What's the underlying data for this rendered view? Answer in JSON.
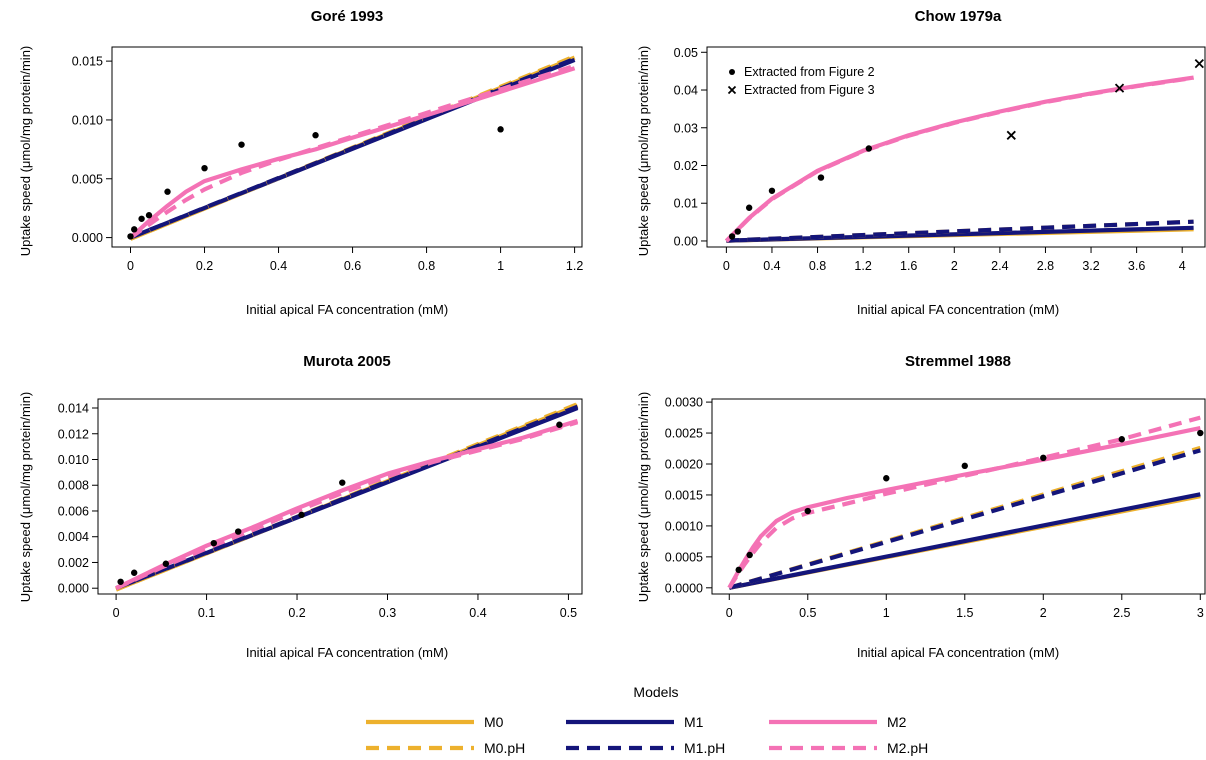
{
  "colors": {
    "M0": "#EDB12D",
    "M1": "#14157A",
    "M2": "#F472B5"
  },
  "legend": {
    "title": "Models",
    "entries": [
      {
        "key": "M0",
        "label": "M0",
        "dashed": false
      },
      {
        "key": "M1",
        "label": "M1",
        "dashed": false
      },
      {
        "key": "M2",
        "label": "M2",
        "dashed": false
      },
      {
        "key": "M0",
        "label": "M0.pH",
        "dashed": true
      },
      {
        "key": "M1",
        "label": "M1.pH",
        "dashed": true
      },
      {
        "key": "M2",
        "label": "M2.pH",
        "dashed": true
      }
    ]
  },
  "chart_data": [
    {
      "type": "line",
      "title": "Goré 1993",
      "xlabel": "Initial apical FA concentration (mM)",
      "ylabel": "Uptake speed (μmol/mg protein/min)",
      "xlim": [
        -0.05,
        1.22
      ],
      "ylim": [
        -0.0008,
        0.0162
      ],
      "xticks": [
        "0",
        "0.2",
        "0.4",
        "0.6",
        "0.8",
        "1",
        "1.2"
      ],
      "yticks": [
        "0.000",
        "0.005",
        "0.010",
        "0.015"
      ],
      "points": [
        {
          "x": [
            0,
            0.01,
            0.03,
            0.05,
            0.1,
            0.2,
            0.3,
            0.5,
            1.0
          ],
          "y": [
            0.0001,
            0.0007,
            0.0016,
            0.0019,
            0.0039,
            0.0059,
            0.0079,
            0.0087,
            0.0092
          ],
          "marker": "dot"
        }
      ],
      "series": [
        {
          "name": "M0",
          "dashed": false,
          "x": [
            0,
            1.2
          ],
          "y": [
            -0.0001,
            0.0153
          ]
        },
        {
          "name": "M1",
          "dashed": false,
          "x": [
            0,
            1.2
          ],
          "y": [
            0.0,
            0.0151
          ]
        },
        {
          "name": "M0.pH",
          "dashed": true,
          "x": [
            0,
            1.2
          ],
          "y": [
            -0.0001,
            0.0154
          ]
        },
        {
          "name": "M1.pH",
          "dashed": true,
          "x": [
            0,
            1.2
          ],
          "y": [
            0.0,
            0.0152
          ]
        },
        {
          "name": "M2",
          "dashed": false,
          "x": [
            0,
            0.05,
            0.1,
            0.15,
            0.2,
            0.3,
            0.4,
            0.5,
            0.6,
            0.8,
            1.0,
            1.2
          ],
          "y": [
            0.0,
            0.0014,
            0.0027,
            0.0039,
            0.0048,
            0.0058,
            0.0067,
            0.0075,
            0.0085,
            0.0104,
            0.0124,
            0.0144
          ]
        },
        {
          "name": "M2.pH",
          "dashed": true,
          "x": [
            0,
            0.05,
            0.1,
            0.15,
            0.2,
            0.3,
            0.4,
            0.5,
            0.6,
            0.8,
            1.0,
            1.2
          ],
          "y": [
            0.0,
            0.0011,
            0.0022,
            0.0032,
            0.0041,
            0.0055,
            0.0066,
            0.0076,
            0.0086,
            0.0106,
            0.0126,
            0.0146
          ]
        }
      ]
    },
    {
      "type": "line",
      "title": "Chow 1979a",
      "xlabel": "Initial apical FA concentration (mM)",
      "ylabel": "Uptake speed (μmol/mg protein/min)",
      "xlim": [
        -0.17,
        4.2
      ],
      "ylim": [
        -0.0016,
        0.0514
      ],
      "xticks": [
        "0",
        "0.4",
        "0.8",
        "1.2",
        "1.6",
        "2",
        "2.4",
        "2.8",
        "3.2",
        "3.6",
        "4"
      ],
      "yticks": [
        "0.00",
        "0.01",
        "0.02",
        "0.03",
        "0.04",
        "0.05"
      ],
      "annotations": [
        "Extracted from Figure 2",
        "Extracted from Figure 3"
      ],
      "points": [
        {
          "x": [
            0.05,
            0.1,
            0.2,
            0.4,
            0.83,
            1.25
          ],
          "y": [
            0.0012,
            0.0025,
            0.0088,
            0.0133,
            0.0168,
            0.0245
          ],
          "marker": "dot"
        },
        {
          "x": [
            2.5,
            3.45,
            4.15
          ],
          "y": [
            0.028,
            0.0405,
            0.047
          ],
          "marker": "cross"
        }
      ],
      "series": [
        {
          "name": "M0",
          "dashed": false,
          "x": [
            0,
            4.1
          ],
          "y": [
            0.0001,
            0.0031
          ]
        },
        {
          "name": "M1",
          "dashed": false,
          "x": [
            0,
            4.1
          ],
          "y": [
            0.0001,
            0.0035
          ]
        },
        {
          "name": "M0.pH",
          "dashed": true,
          "x": [
            0,
            4.1
          ],
          "y": [
            0.0001,
            0.0051
          ]
        },
        {
          "name": "M1.pH",
          "dashed": true,
          "x": [
            0,
            4.1
          ],
          "y": [
            0.0001,
            0.0051
          ]
        },
        {
          "name": "M2",
          "dashed": false,
          "x": [
            0,
            0.2,
            0.4,
            0.8,
            1.2,
            1.6,
            2.0,
            2.4,
            2.8,
            3.2,
            3.6,
            4.1
          ],
          "y": [
            0.0,
            0.0061,
            0.0112,
            0.0186,
            0.0239,
            0.028,
            0.0314,
            0.0343,
            0.0369,
            0.0391,
            0.0411,
            0.0433
          ]
        },
        {
          "name": "M2.pH",
          "dashed": true,
          "x": [
            0,
            0.2,
            0.4,
            0.8,
            1.2,
            1.6,
            2.0,
            2.4,
            2.8,
            3.2,
            3.6,
            4.1
          ],
          "y": [
            0.0,
            0.006,
            0.0111,
            0.0185,
            0.0238,
            0.0279,
            0.0313,
            0.0342,
            0.0368,
            0.039,
            0.041,
            0.0432
          ]
        }
      ]
    },
    {
      "type": "line",
      "title": "Murota 2005",
      "xlabel": "Initial apical FA concentration (mM)",
      "ylabel": "Uptake speed (μmol/mg protein/min)",
      "xlim": [
        -0.02,
        0.515
      ],
      "ylim": [
        -0.00045,
        0.0147
      ],
      "xticks": [
        "0",
        "0.1",
        "0.2",
        "0.3",
        "0.4",
        "0.5"
      ],
      "yticks": [
        "0.000",
        "0.002",
        "0.004",
        "0.006",
        "0.008",
        "0.010",
        "0.012",
        "0.014"
      ],
      "points": [
        {
          "x": [
            0.005,
            0.02,
            0.055,
            0.108,
            0.135,
            0.205,
            0.25,
            0.49
          ],
          "y": [
            0.0005,
            0.0012,
            0.0019,
            0.0035,
            0.0044,
            0.0057,
            0.0082,
            0.0127
          ],
          "marker": "dot"
        }
      ],
      "series": [
        {
          "name": "M0",
          "dashed": false,
          "x": [
            0,
            0.51
          ],
          "y": [
            -0.0001,
            0.0142
          ]
        },
        {
          "name": "M1",
          "dashed": false,
          "x": [
            0,
            0.51
          ],
          "y": [
            0.0,
            0.014
          ]
        },
        {
          "name": "M0.pH",
          "dashed": true,
          "x": [
            0,
            0.51
          ],
          "y": [
            -0.0001,
            0.0143
          ]
        },
        {
          "name": "M1.pH",
          "dashed": true,
          "x": [
            0,
            0.51
          ],
          "y": [
            0.0,
            0.0141
          ]
        },
        {
          "name": "M2",
          "dashed": false,
          "x": [
            0,
            0.05,
            0.1,
            0.15,
            0.2,
            0.25,
            0.3,
            0.35,
            0.4,
            0.45,
            0.51
          ],
          "y": [
            0.0,
            0.0017,
            0.0033,
            0.0047,
            0.0062,
            0.0076,
            0.0089,
            0.0099,
            0.0108,
            0.0117,
            0.013
          ]
        },
        {
          "name": "M2.pH",
          "dashed": true,
          "x": [
            0,
            0.05,
            0.1,
            0.15,
            0.2,
            0.25,
            0.3,
            0.35,
            0.4,
            0.45,
            0.51
          ],
          "y": [
            0.0,
            0.0016,
            0.0031,
            0.0045,
            0.006,
            0.0074,
            0.0087,
            0.0098,
            0.0107,
            0.0116,
            0.0129
          ]
        }
      ]
    },
    {
      "type": "line",
      "title": "Stremmel 1988",
      "xlabel": "Initial apical FA concentration (mM)",
      "ylabel": "Uptake speed (μmol/mg protein/min)",
      "xlim": [
        -0.11,
        3.03
      ],
      "ylim": [
        -0.0001,
        0.00305
      ],
      "xticks": [
        "0",
        "0.5",
        "1",
        "1.5",
        "2",
        "2.5",
        "3"
      ],
      "yticks": [
        "0.0000",
        "0.0005",
        "0.0010",
        "0.0015",
        "0.0020",
        "0.0025",
        "0.0030"
      ],
      "points": [
        {
          "x": [
            0.06,
            0.13,
            0.5,
            1.0,
            1.5,
            2.0,
            2.5,
            3.0
          ],
          "y": [
            0.00029,
            0.00053,
            0.00124,
            0.00177,
            0.00197,
            0.0021,
            0.0024,
            0.0025
          ],
          "marker": "dot"
        }
      ],
      "series": [
        {
          "name": "M0",
          "dashed": false,
          "x": [
            0,
            3.0
          ],
          "y": [
            0.0,
            0.00148
          ]
        },
        {
          "name": "M1",
          "dashed": false,
          "x": [
            0,
            3.0
          ],
          "y": [
            0.0,
            0.00151
          ]
        },
        {
          "name": "M0.pH",
          "dashed": true,
          "x": [
            0,
            3.0
          ],
          "y": [
            0.0,
            0.00226
          ]
        },
        {
          "name": "M1.pH",
          "dashed": true,
          "x": [
            0,
            3.0
          ],
          "y": [
            0.0,
            0.00222
          ]
        },
        {
          "name": "M2",
          "dashed": false,
          "x": [
            0,
            0.05,
            0.1,
            0.15,
            0.2,
            0.3,
            0.4,
            0.5,
            0.75,
            1.0,
            1.5,
            2.0,
            2.5,
            3.0
          ],
          "y": [
            0.0,
            0.00023,
            0.00045,
            0.00065,
            0.00083,
            0.00108,
            0.00122,
            0.0013,
            0.00145,
            0.00158,
            0.00183,
            0.00207,
            0.00232,
            0.00258
          ]
        },
        {
          "name": "M2.pH",
          "dashed": true,
          "x": [
            0,
            0.05,
            0.1,
            0.15,
            0.2,
            0.3,
            0.4,
            0.5,
            0.75,
            1.0,
            1.5,
            2.0,
            2.5,
            3.0
          ],
          "y": [
            0.0,
            0.0002,
            0.00039,
            0.00056,
            0.00072,
            0.00097,
            0.00112,
            0.00121,
            0.00136,
            0.00152,
            0.00181,
            0.0021,
            0.0024,
            0.00275
          ]
        }
      ]
    }
  ]
}
